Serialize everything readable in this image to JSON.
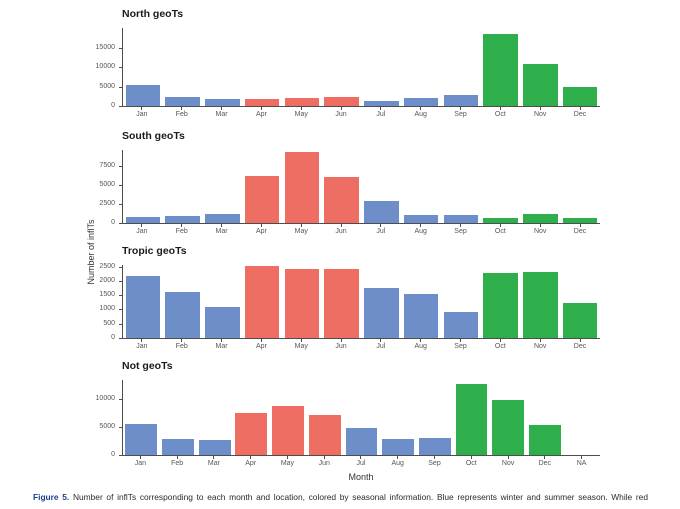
{
  "figure": {
    "y_axis_label": "Number of inflTs",
    "x_axis_label": "Month",
    "caption_label": "Figure 5.",
    "caption_text": " Number of inflTs corresponding to each month and location, colored by seasonal information. Blue represents winter and summer season. While red"
  },
  "palette": {
    "winter_blue": "#6D8EC9",
    "summer_red": "#EE6E63",
    "autumn_green": "#2FAE4C",
    "caption_label_blue": "#1d3d8f",
    "axis_line": "#4d4d4d"
  },
  "chart_data": [
    {
      "type": "bar",
      "title": "North geoTs",
      "categories": [
        "Jan",
        "Feb",
        "Mar",
        "Apr",
        "May",
        "Jun",
        "Jul",
        "Aug",
        "Sep",
        "Oct",
        "Nov",
        "Dec"
      ],
      "values": [
        5400,
        2450,
        1700,
        1750,
        1950,
        2250,
        1250,
        2000,
        2800,
        18600,
        10900,
        4800
      ],
      "bar_colors": [
        "#6D8EC9",
        "#6D8EC9",
        "#6D8EC9",
        "#EE6E63",
        "#EE6E63",
        "#EE6E63",
        "#6D8EC9",
        "#6D8EC9",
        "#6D8EC9",
        "#2FAE4C",
        "#2FAE4C",
        "#2FAE4C"
      ],
      "xlabel": "Month",
      "ylabel": "Number of inflTs",
      "ylim": [
        0,
        20200
      ],
      "yticks": [
        0,
        5000,
        10000,
        15000
      ],
      "grid": false,
      "legend": "none"
    },
    {
      "type": "bar",
      "title": "South geoTs",
      "categories": [
        "Jan",
        "Feb",
        "Mar",
        "Apr",
        "May",
        "Jun",
        "Jul",
        "Aug",
        "Sep",
        "Oct",
        "Nov",
        "Dec"
      ],
      "values": [
        800,
        950,
        1200,
        6200,
        9400,
        6050,
        2850,
        1100,
        1050,
        700,
        1150,
        650
      ],
      "bar_colors": [
        "#6D8EC9",
        "#6D8EC9",
        "#6D8EC9",
        "#EE6E63",
        "#EE6E63",
        "#EE6E63",
        "#6D8EC9",
        "#6D8EC9",
        "#6D8EC9",
        "#2FAE4C",
        "#2FAE4C",
        "#2FAE4C"
      ],
      "xlabel": "Month",
      "ylabel": "Number of inflTs",
      "ylim": [
        0,
        9600
      ],
      "yticks": [
        0,
        2500,
        5000,
        7500
      ],
      "grid": false,
      "legend": "none"
    },
    {
      "type": "bar",
      "title": "Tropic geoTs",
      "categories": [
        "Jan",
        "Feb",
        "Mar",
        "Apr",
        "May",
        "Jun",
        "Jul",
        "Aug",
        "Sep",
        "Oct",
        "Nov",
        "Dec"
      ],
      "values": [
        2170,
        1620,
        1080,
        2530,
        2420,
        2420,
        1750,
        1560,
        920,
        2270,
        2330,
        1230
      ],
      "bar_colors": [
        "#6D8EC9",
        "#6D8EC9",
        "#6D8EC9",
        "#EE6E63",
        "#EE6E63",
        "#EE6E63",
        "#6D8EC9",
        "#6D8EC9",
        "#6D8EC9",
        "#2FAE4C",
        "#2FAE4C",
        "#2FAE4C"
      ],
      "xlabel": "Month",
      "ylabel": "Number of inflTs",
      "ylim": [
        0,
        2560
      ],
      "yticks": [
        0,
        500,
        1000,
        1500,
        2000,
        2500
      ],
      "grid": false,
      "legend": "none"
    },
    {
      "type": "bar",
      "title": "Not geoTs",
      "categories": [
        "Jan",
        "Feb",
        "Mar",
        "Apr",
        "May",
        "Jun",
        "Jul",
        "Aug",
        "Sep",
        "Oct",
        "Nov",
        "Dec",
        "NA"
      ],
      "values": [
        5600,
        2850,
        2750,
        7500,
        8800,
        7150,
        4900,
        2950,
        3000,
        12850,
        9900,
        5400,
        0
      ],
      "bar_colors": [
        "#6D8EC9",
        "#6D8EC9",
        "#6D8EC9",
        "#EE6E63",
        "#EE6E63",
        "#EE6E63",
        "#6D8EC9",
        "#6D8EC9",
        "#6D8EC9",
        "#2FAE4C",
        "#2FAE4C",
        "#2FAE4C",
        "#ffffff"
      ],
      "xlabel": "Month",
      "ylabel": "Number of inflTs",
      "ylim": [
        0,
        13500
      ],
      "yticks": [
        0,
        5000,
        10000
      ],
      "grid": false,
      "legend": "none"
    }
  ]
}
